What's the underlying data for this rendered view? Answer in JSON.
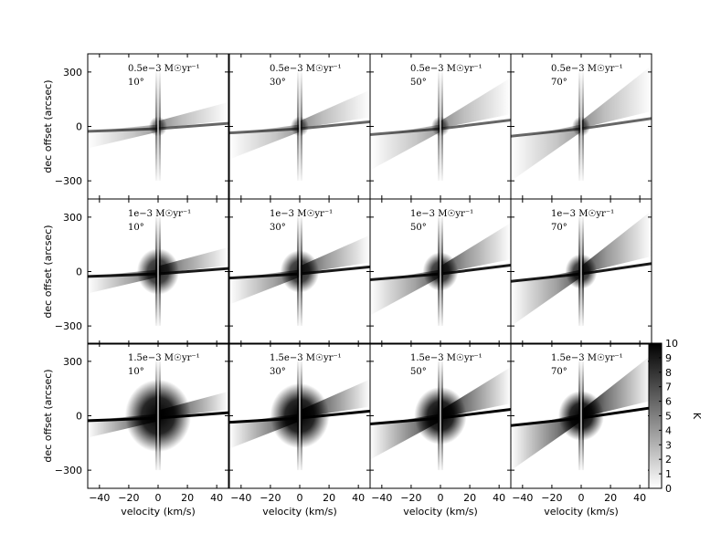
{
  "chart_data": {
    "type": "heatmap",
    "layout": {
      "rows": 3,
      "cols": 4
    },
    "xlabel": "velocity (km/s)",
    "ylabel": "dec offset (arcsec)",
    "xlim": [
      -48,
      48
    ],
    "ylim": [
      -400,
      400
    ],
    "xticks": [
      -40,
      -20,
      0,
      20,
      40
    ],
    "xtick_labels": [
      "−40",
      "−20",
      "0",
      "20",
      "40"
    ],
    "yticks": [
      300,
      0,
      -300
    ],
    "ytick_labels": [
      "300",
      "0",
      "−300"
    ],
    "colorscale": "gray_r",
    "colorbar": {
      "label": "K",
      "min": 0,
      "max": 10,
      "ticks": [
        "0",
        "1",
        "2",
        "3",
        "4",
        "5",
        "6",
        "7",
        "8",
        "9",
        "10"
      ]
    },
    "row_labels": [
      "0.5e−3 M☉yr⁻¹",
      "1e−3 M☉yr⁻¹",
      "1.5e−3 M☉yr⁻¹"
    ],
    "col_labels": [
      "10°",
      "30°",
      "50°",
      "70°"
    ],
    "mass_loss_rates": [
      0.5,
      1.0,
      1.5
    ],
    "inclinations": [
      10,
      30,
      50,
      70
    ]
  }
}
